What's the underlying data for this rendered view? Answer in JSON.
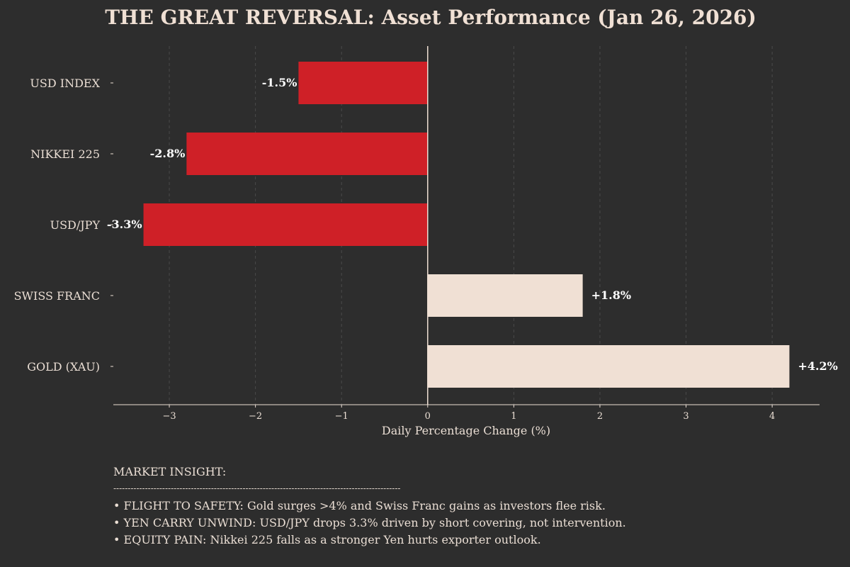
{
  "chart_data": {
    "type": "bar",
    "orientation": "horizontal",
    "title": "THE GREAT REVERSAL: Asset Performance (Jan 26, 2026)",
    "xlabel": "Daily Percentage Change (%)",
    "ylabel": "",
    "xlim": [
      -3.65,
      4.55
    ],
    "xticks": [
      -3,
      -2,
      -1,
      0,
      1,
      2,
      3,
      4
    ],
    "xtick_labels": [
      "−3",
      "−2",
      "−1",
      "0",
      "1",
      "2",
      "3",
      "4"
    ],
    "grid": "vertical dashed",
    "categories": [
      "USD INDEX",
      "NIKKEI 225",
      "USD/JPY",
      "SWISS FRANC",
      "GOLD (XAU)"
    ],
    "values": [
      -1.5,
      -2.8,
      -3.3,
      1.8,
      4.2
    ],
    "data_labels": [
      "-1.5%",
      "-2.8%",
      "-3.3%",
      "+1.8%",
      "+4.2%"
    ],
    "colors": {
      "negative": "#cf2027",
      "positive": "#f0e0d4",
      "background": "#2d2d2d",
      "text": "#eaded4",
      "label": "#ffffff",
      "grid": "#4a4a4a"
    }
  },
  "insight": {
    "heading": "MARKET INSIGHT:",
    "rule": "----------------------------------------------------------------------------------------------------",
    "lines": [
      "• FLIGHT TO SAFETY: Gold surges >4% and Swiss Franc gains as investors flee risk.",
      "• YEN CARRY UNWIND: USD/JPY drops 3.3% driven by short covering, not intervention.",
      "• EQUITY PAIN: Nikkei 225 falls as a stronger Yen hurts exporter outlook."
    ]
  }
}
